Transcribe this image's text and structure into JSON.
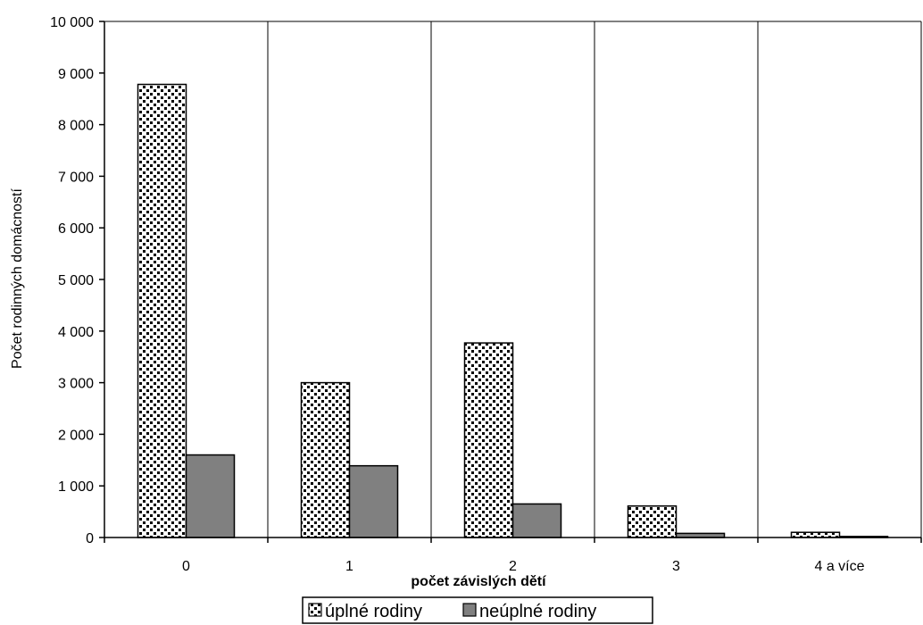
{
  "chart_data": {
    "type": "bar",
    "categories": [
      "0",
      "1",
      "2",
      "3",
      "4 a více"
    ],
    "series": [
      {
        "name": "úplné rodiny",
        "values": [
          8780,
          3000,
          3770,
          610,
          100
        ],
        "pattern": "dots"
      },
      {
        "name": "neúplné rodiny",
        "values": [
          1600,
          1390,
          650,
          80,
          20
        ],
        "color": "#808080"
      }
    ],
    "xlabel": "počet závislých dětí",
    "ylabel": "Počet rodinných domácností",
    "ylim": [
      0,
      10000
    ],
    "yticks": [
      "0",
      "1 000",
      "2 000",
      "3 000",
      "4 000",
      "5 000",
      "6 000",
      "7 000",
      "8 000",
      "9 000",
      "10 000"
    ],
    "grid": "vertical",
    "legend": "bottom"
  }
}
